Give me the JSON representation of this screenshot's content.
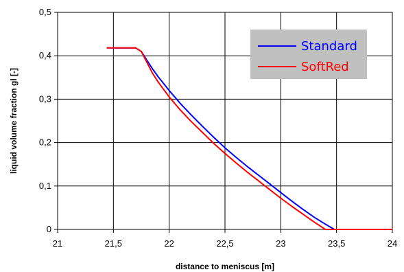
{
  "chart_data": {
    "type": "line",
    "xlabel": "distance to meniscus [m]",
    "ylabel": "liquid volume fraction gl [-]",
    "xlim": [
      21,
      24
    ],
    "ylim": [
      0,
      0.5
    ],
    "x_ticks": [
      "21",
      "21,5",
      "22",
      "22,5",
      "23",
      "23,5",
      "24"
    ],
    "y_ticks": [
      "0",
      "0,1",
      "0,2",
      "0,3",
      "0,4",
      "0,5"
    ],
    "grid": true,
    "legend_position": "top-right",
    "series": [
      {
        "name": "Standard",
        "color": "#0000ff",
        "x": [
          21.44,
          21.5,
          21.6,
          21.7,
          21.75,
          21.8,
          21.85,
          21.9,
          22.0,
          22.1,
          22.2,
          22.3,
          22.4,
          22.5,
          22.6,
          22.7,
          22.8,
          22.9,
          23.0,
          23.1,
          23.2,
          23.3,
          23.4,
          23.48,
          24.0
        ],
        "y": [
          0.418,
          0.418,
          0.418,
          0.418,
          0.41,
          0.39,
          0.37,
          0.352,
          0.32,
          0.29,
          0.263,
          0.237,
          0.212,
          0.188,
          0.166,
          0.145,
          0.125,
          0.105,
          0.085,
          0.065,
          0.046,
          0.028,
          0.012,
          0.0,
          0.0
        ]
      },
      {
        "name": "SoftRed",
        "color": "#ff0000",
        "x": [
          21.44,
          21.5,
          21.6,
          21.7,
          21.75,
          21.8,
          21.85,
          21.9,
          22.0,
          22.1,
          22.2,
          22.3,
          22.4,
          22.5,
          22.6,
          22.7,
          22.8,
          22.9,
          23.0,
          23.1,
          23.2,
          23.3,
          23.4,
          24.0
        ],
        "y": [
          0.418,
          0.418,
          0.418,
          0.418,
          0.41,
          0.385,
          0.36,
          0.34,
          0.305,
          0.275,
          0.248,
          0.223,
          0.198,
          0.175,
          0.153,
          0.132,
          0.112,
          0.092,
          0.072,
          0.053,
          0.035,
          0.017,
          0.0,
          0.0
        ]
      }
    ]
  }
}
